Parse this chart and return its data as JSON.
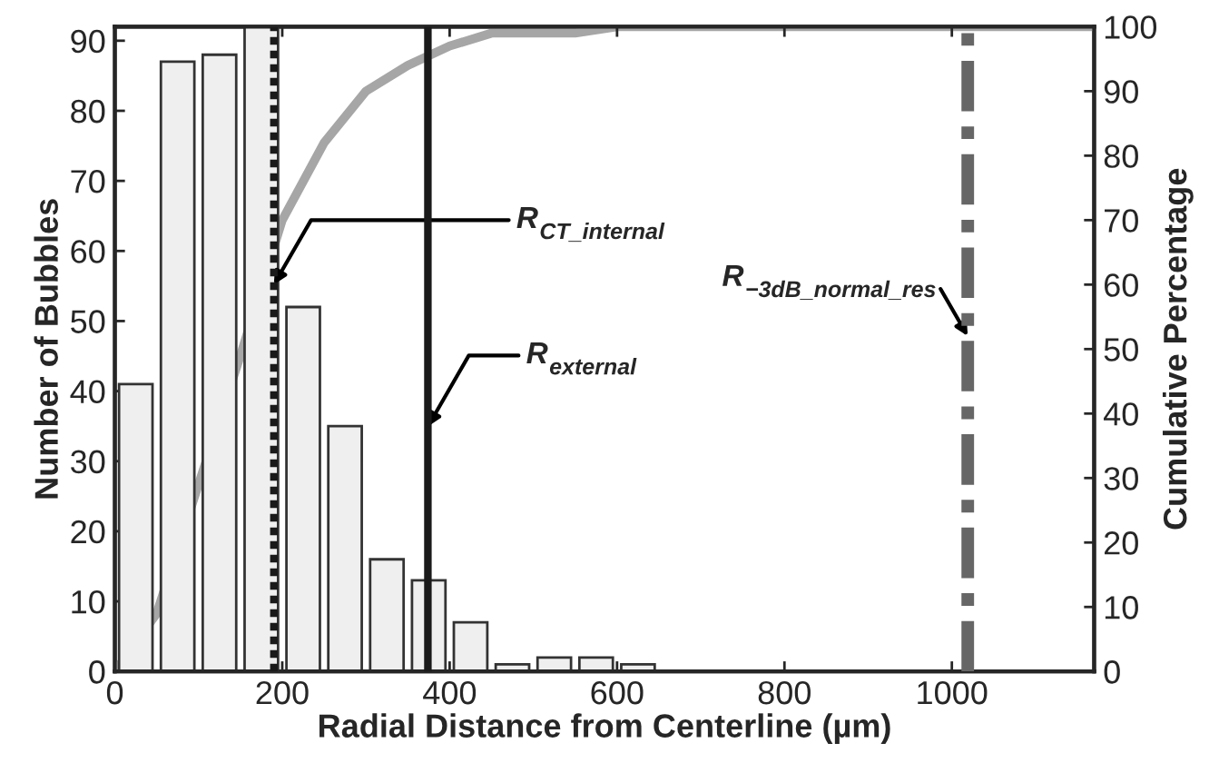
{
  "chart_data": {
    "type": "histogram",
    "xlabel": "Radial Distance from Centerline (µm)",
    "ylabel": "Number of Bubbles",
    "y2label": "Cumulative Percentage",
    "bins": [
      0,
      50,
      100,
      150,
      200,
      250,
      300,
      350,
      400,
      450,
      500,
      550,
      600,
      650
    ],
    "values": [
      41,
      87,
      88,
      92,
      52,
      35,
      16,
      13,
      7,
      1,
      2,
      2,
      1
    ],
    "color": "#efefef",
    "series": [
      {
        "type": "line",
        "axis": "y2",
        "color": "#a6a6a6",
        "x": [
          0,
          50,
          100,
          150,
          200,
          250,
          300,
          350,
          400,
          450,
          500,
          550,
          600,
          650,
          1170
        ],
        "values": [
          0,
          9,
          29,
          49,
          70,
          82,
          90,
          94,
          97,
          99,
          99,
          99,
          100,
          100,
          100
        ]
      }
    ],
    "ref_lines": [
      {
        "axis": "x",
        "value": 190,
        "label": "R$_{CT_internal}$",
        "color": "#1a1a1a",
        "line_style": "dotted"
      },
      {
        "axis": "x",
        "value": 374,
        "label": "R$_{external}$",
        "color": "#1a1a1a",
        "line_style": "solid"
      },
      {
        "axis": "x",
        "value": 1019,
        "label": "R$_{−3dB_normal_res}$",
        "color": "#666666",
        "line_style": "dashdot"
      }
    ],
    "xlim": [
      0,
      1170
    ],
    "xticks": [
      0,
      200,
      400,
      600,
      800,
      1000
    ],
    "ylim": [
      0,
      92
    ],
    "yticks": [
      0,
      10,
      20,
      30,
      40,
      50,
      60,
      70,
      80,
      90
    ],
    "y2lim": [
      0,
      100
    ],
    "y2ticks": [
      0,
      10,
      20,
      30,
      40,
      50,
      60,
      70,
      80,
      90,
      100
    ],
    "grid": false,
    "legend": false
  }
}
